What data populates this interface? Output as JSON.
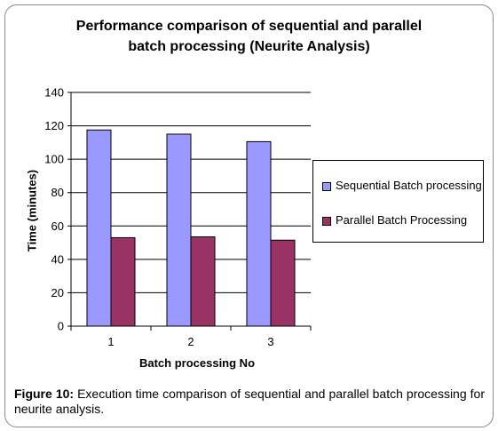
{
  "chart_data": {
    "type": "bar",
    "title_line1": "Performance comparison of sequential and parallel",
    "title_line2": "batch processing (Neurite Analysis)",
    "xlabel": "Batch processing No",
    "ylabel": "Time (minutes)",
    "categories": [
      "1",
      "2",
      "3"
    ],
    "series": [
      {
        "name": "Sequential Batch processing",
        "values": [
          117.5,
          115,
          110.5
        ],
        "color": "#9999ff"
      },
      {
        "name": "Parallel Batch Processing",
        "values": [
          53,
          53.5,
          51.5
        ],
        "color": "#993366"
      }
    ],
    "ylim": [
      0,
      140
    ],
    "yticks": [
      0,
      20,
      40,
      60,
      80,
      100,
      120,
      140
    ],
    "grid": true,
    "legend_position": "right"
  },
  "caption": {
    "label": "Figure 10:",
    "text": " Execution time comparison of sequential and parallel batch processing for neurite analysis."
  }
}
